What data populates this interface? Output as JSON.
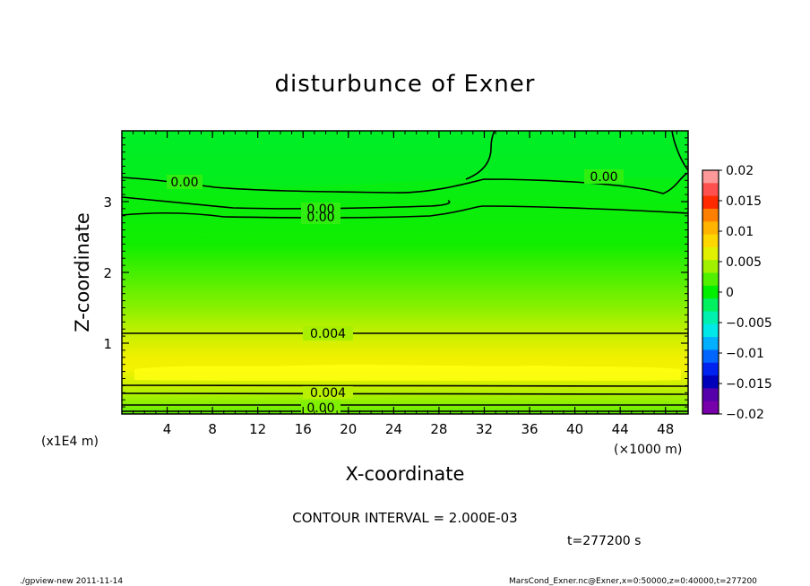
{
  "chart_data": {
    "type": "contour",
    "title": "disturbunce of Exner",
    "xlabel": "X-coordinate",
    "ylabel": "Z-coordinate",
    "x_unit": "(×1000 m)",
    "y_unit": "(x1E4 m)",
    "xlim": [
      0,
      50
    ],
    "ylim": [
      0,
      4
    ],
    "x_ticks": [
      "4",
      "8",
      "12",
      "16",
      "20",
      "24",
      "28",
      "32",
      "36",
      "40",
      "44",
      "48"
    ],
    "y_ticks": [
      "1",
      "2",
      "3"
    ],
    "colorbar": {
      "ticks": [
        "0.02",
        "0.015",
        "0.01",
        "0.005",
        "0",
        "−0.005",
        "−0.01",
        "−0.015",
        "−0.02"
      ],
      "colors": [
        "#ff9999",
        "#ff5050",
        "#ff2a00",
        "#ff7f00",
        "#ffb400",
        "#ffd700",
        "#e0f000",
        "#a0f000",
        "#50f000",
        "#00ee00",
        "#00f060",
        "#00f0b0",
        "#00e8e8",
        "#00b0ff",
        "#0066ff",
        "#0022ee",
        "#0000bb",
        "#5500aa",
        "#7700aa"
      ]
    },
    "contour_labels": [
      "0.00",
      "0.00",
      "0.00",
      "0.00",
      "0.004",
      "0.004",
      "0.00"
    ],
    "contour_interval": "CONTOUR INTERVAL = 2.000E-03",
    "time_label": "t=277200 s"
  },
  "footer": {
    "left": "./gpview-new   2011-11-14",
    "right": "MarsCond_Exner.nc@Exner,x=0:50000,z=0:40000,t=277200"
  }
}
